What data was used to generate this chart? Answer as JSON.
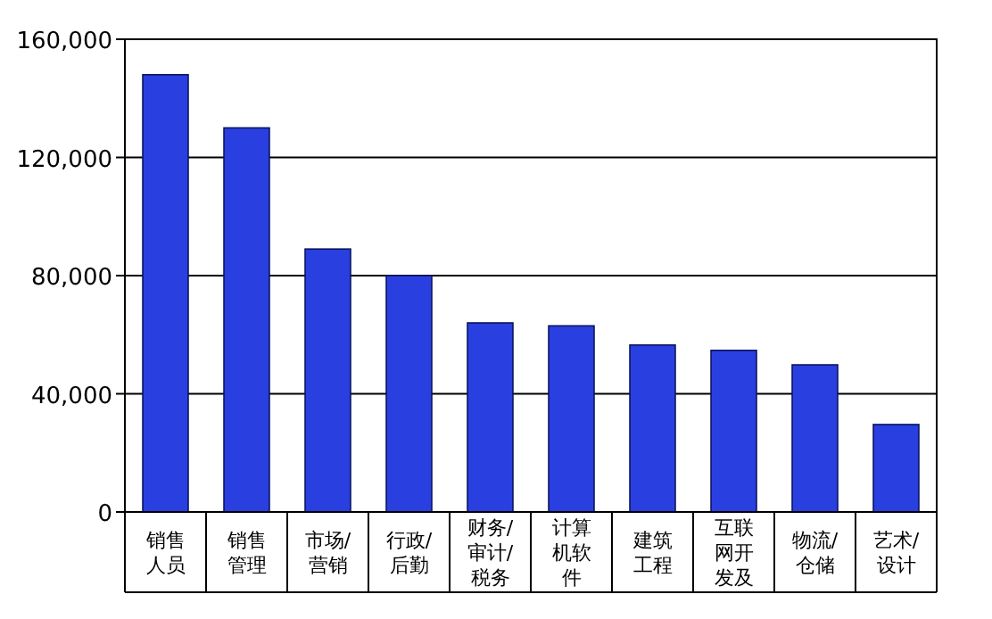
{
  "chart_data": {
    "type": "bar",
    "categories": [
      "销售人员",
      "销售管理",
      "市场/营销",
      "行政/后勤",
      "财务/审计/税务",
      "计算机软件",
      "建筑工程",
      "互联网开发及",
      "物流/仓储",
      "艺术/设计"
    ],
    "values": [
      148000,
      130000,
      89000,
      80000,
      64000,
      63000,
      56500,
      54700,
      49800,
      29600
    ],
    "color": "#2a3fe0",
    "ylim": [
      0,
      160000
    ],
    "yticks": [
      {
        "value": 0,
        "label": "0"
      },
      {
        "value": 40000,
        "label": "40,000"
      },
      {
        "value": 80000,
        "label": "80,000"
      },
      {
        "value": 120000,
        "label": "120,000"
      },
      {
        "value": 160000,
        "label": "160,000"
      }
    ],
    "grid": "y"
  }
}
